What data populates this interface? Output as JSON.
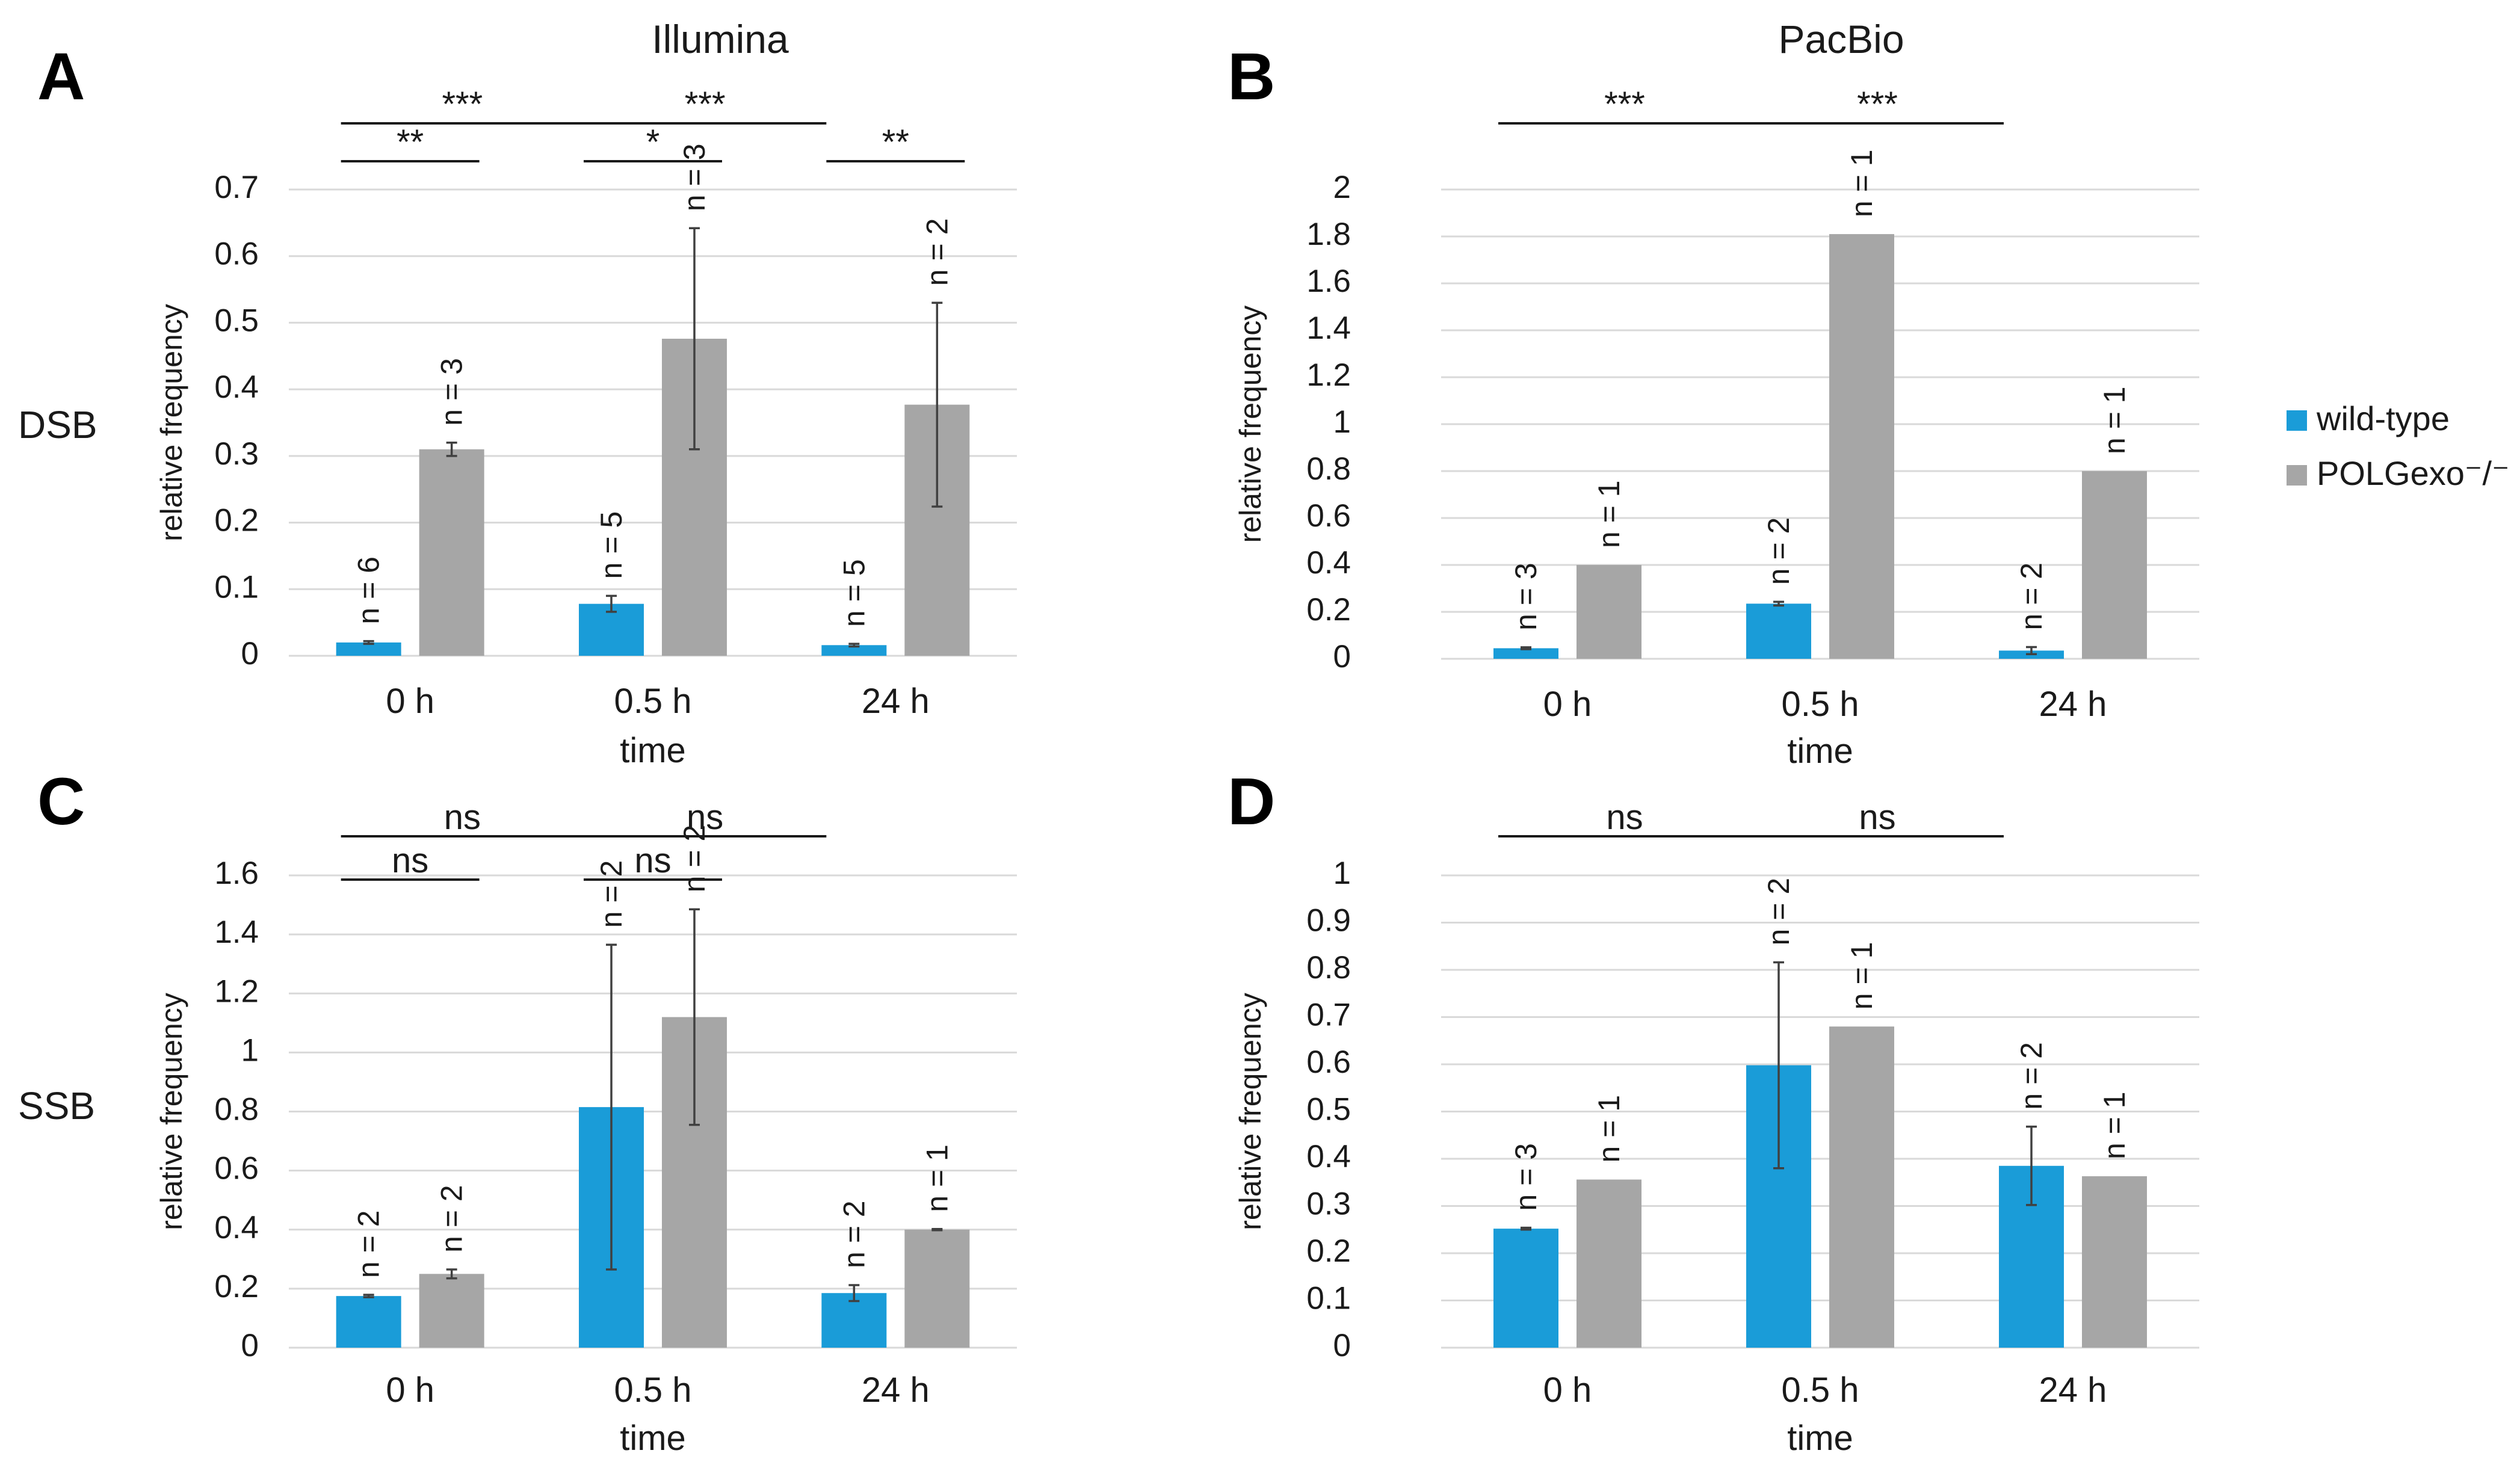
{
  "colors": {
    "wild_type": "#1a9cd8",
    "polgexo": "#a6a6a6"
  },
  "column_titles": [
    "Illumina",
    "PacBio"
  ],
  "row_labels": [
    "DSB",
    "SSB"
  ],
  "legend": {
    "items": [
      "wild-type",
      "POLGexo⁻/⁻"
    ]
  },
  "chart_data": [
    {
      "panel": "A",
      "type": "bar",
      "title": "Illumina",
      "row": "DSB",
      "categories": [
        "0 h",
        "0.5 h",
        "24 h"
      ],
      "xlabel": "time",
      "ylabel": "relative frequency",
      "ylim": [
        0,
        0.7
      ],
      "yticks": [
        0,
        0.1,
        0.2,
        0.3,
        0.4,
        0.5,
        0.6,
        0.7
      ],
      "ytick_labels": [
        "0",
        "0.1",
        "0.2",
        "0.3",
        "0.4",
        "0.5",
        "0.6",
        "0.7"
      ],
      "series": [
        {
          "name": "wild-type",
          "values": [
            0.02,
            0.078,
            0.016
          ],
          "errors": [
            0.002,
            0.012,
            0.002
          ],
          "n_labels": [
            "n = 6",
            "n = 5",
            "n = 5"
          ]
        },
        {
          "name": "POLGexo⁻/⁻",
          "values": [
            0.31,
            0.476,
            0.377
          ],
          "errors": [
            0.01,
            0.166,
            0.153
          ],
          "n_labels": [
            "n = 3",
            "n = 3",
            "n = 2"
          ]
        }
      ],
      "significance": [
        {
          "from": [
            0,
            0
          ],
          "to": [
            0,
            1
          ],
          "label": "**",
          "level": 1
        },
        {
          "from": [
            1,
            0
          ],
          "to": [
            1,
            1
          ],
          "label": "*",
          "level": 1
        },
        {
          "from": [
            2,
            0
          ],
          "to": [
            2,
            1
          ],
          "label": "**",
          "level": 1
        },
        {
          "from": [
            0,
            0
          ],
          "to": [
            1,
            0
          ],
          "label": "***",
          "level": 2
        },
        {
          "from": [
            1,
            0
          ],
          "to": [
            2,
            0
          ],
          "label": "***",
          "level": 2
        }
      ]
    },
    {
      "panel": "B",
      "type": "bar",
      "title": "PacBio",
      "row": "DSB",
      "categories": [
        "0 h",
        "0.5 h",
        "24 h"
      ],
      "xlabel": "time",
      "ylabel": "relative frequency",
      "ylim": [
        0,
        2
      ],
      "yticks": [
        0,
        0.2,
        0.4,
        0.6,
        0.8,
        1,
        1.2,
        1.4,
        1.6,
        1.8,
        2
      ],
      "ytick_labels": [
        "0",
        "0.2",
        "0.4",
        "0.6",
        "0.8",
        "1",
        "1.2",
        "1.4",
        "1.6",
        "1.8",
        "2"
      ],
      "series": [
        {
          "name": "wild-type",
          "values": [
            0.045,
            0.235,
            0.035
          ],
          "errors": [
            0.004,
            0.008,
            0.015
          ],
          "n_labels": [
            "n = 3",
            "n = 2",
            "n = 2"
          ]
        },
        {
          "name": "POLGexo⁻/⁻",
          "values": [
            0.4,
            1.81,
            0.8
          ],
          "errors": [
            0,
            0,
            0
          ],
          "n_labels": [
            "n = 1",
            "n = 1",
            "n = 1"
          ]
        }
      ],
      "significance": [
        {
          "from": [
            0,
            0
          ],
          "to": [
            1,
            0
          ],
          "label": "***",
          "level": 2
        },
        {
          "from": [
            1,
            0
          ],
          "to": [
            2,
            0
          ],
          "label": "***",
          "level": 2
        }
      ]
    },
    {
      "panel": "C",
      "type": "bar",
      "title": "",
      "row": "SSB",
      "categories": [
        "0 h",
        "0.5 h",
        "24 h"
      ],
      "xlabel": "time",
      "ylabel": "relative frequency",
      "ylim": [
        0,
        1.6
      ],
      "yticks": [
        0,
        0.2,
        0.4,
        0.6,
        0.8,
        1,
        1.2,
        1.4,
        1.6
      ],
      "ytick_labels": [
        "0",
        "0.2",
        "0.4",
        "0.6",
        "0.8",
        "1",
        "1.2",
        "1.4",
        "1.6"
      ],
      "series": [
        {
          "name": "wild-type",
          "values": [
            0.175,
            0.815,
            0.185
          ],
          "errors": [
            0.004,
            0.55,
            0.027
          ],
          "n_labels": [
            "n = 2",
            "n = 2",
            "n = 2"
          ]
        },
        {
          "name": "POLGexo⁻/⁻",
          "values": [
            0.25,
            1.12,
            0.4
          ],
          "errors": [
            0.015,
            0.365,
            0.002
          ],
          "n_labels": [
            "n = 2",
            "n = 2",
            "n = 1"
          ]
        }
      ],
      "significance": [
        {
          "from": [
            0,
            0
          ],
          "to": [
            0,
            1
          ],
          "label": "ns",
          "level": 1
        },
        {
          "from": [
            1,
            0
          ],
          "to": [
            1,
            1
          ],
          "label": "ns",
          "level": 1
        },
        {
          "from": [
            0,
            0
          ],
          "to": [
            1,
            0
          ],
          "label": "ns",
          "level": 2
        },
        {
          "from": [
            1,
            0
          ],
          "to": [
            2,
            0
          ],
          "label": "ns",
          "level": 2
        }
      ]
    },
    {
      "panel": "D",
      "type": "bar",
      "title": "",
      "row": "SSB",
      "categories": [
        "0 h",
        "0.5 h",
        "24 h"
      ],
      "xlabel": "time",
      "ylabel": "relative frequency",
      "ylim": [
        0,
        1
      ],
      "yticks": [
        0,
        0.1,
        0.2,
        0.3,
        0.4,
        0.5,
        0.6,
        0.7,
        0.8,
        0.9,
        1
      ],
      "ytick_labels": [
        "0",
        "0.1",
        "0.2",
        "0.3",
        "0.4",
        "0.5",
        "0.6",
        "0.7",
        "0.8",
        "0.9",
        "1"
      ],
      "series": [
        {
          "name": "wild-type",
          "values": [
            0.252,
            0.598,
            0.385
          ],
          "errors": [
            0.002,
            0.218,
            0.083
          ],
          "n_labels": [
            "n = 3",
            "n = 2",
            "n = 2"
          ]
        },
        {
          "name": "POLGexo⁻/⁻",
          "values": [
            0.356,
            0.68,
            0.363
          ],
          "errors": [
            0,
            0,
            0
          ],
          "n_labels": [
            "n = 1",
            "n = 1",
            "n = 1"
          ]
        }
      ],
      "significance": [
        {
          "from": [
            0,
            0
          ],
          "to": [
            1,
            0
          ],
          "label": "ns",
          "level": 2
        },
        {
          "from": [
            1,
            0
          ],
          "to": [
            2,
            0
          ],
          "label": "ns",
          "level": 2
        }
      ]
    }
  ]
}
